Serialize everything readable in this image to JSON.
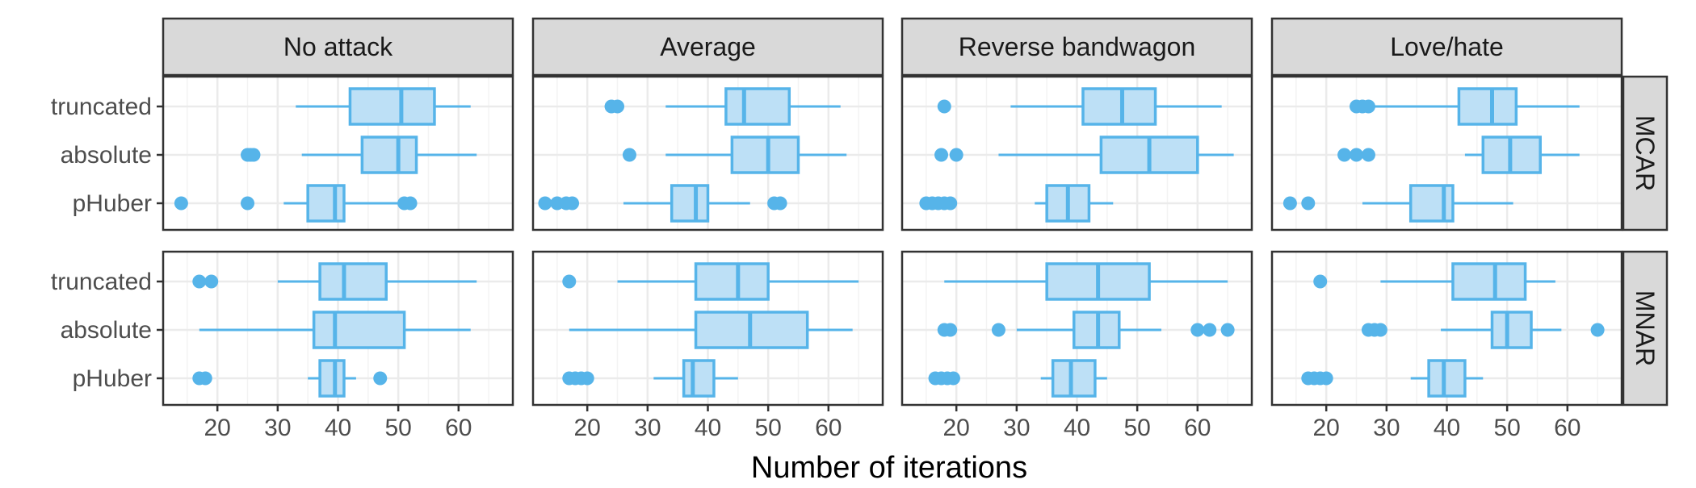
{
  "chart_data": {
    "type": "boxplot",
    "facet_cols": [
      "No attack",
      "Average",
      "Reverse bandwagon",
      "Love/hate"
    ],
    "facet_rows": [
      "MCAR",
      "MNAR"
    ],
    "categories": [
      "truncated",
      "absolute",
      "pHuber"
    ],
    "xlabel": "Number of iterations",
    "xlim": [
      11,
      69
    ],
    "x_ticks": [
      "20",
      "30",
      "40",
      "50",
      "60"
    ],
    "grid": true,
    "colors": {
      "box_fill": "#bde0f6",
      "box_stroke": "#56b4e9",
      "strip_fill": "#d9d9d9",
      "panel_border": "#333333",
      "grid": "#ebebeb"
    },
    "panels": [
      {
        "row": "MCAR",
        "col": "No attack",
        "boxes": [
          {
            "category": "truncated",
            "whisker_low": 33,
            "q1": 42,
            "median": 50.5,
            "q3": 56,
            "whisker_high": 62,
            "outliers": []
          },
          {
            "category": "absolute",
            "whisker_low": 34,
            "q1": 44,
            "median": 50,
            "q3": 53,
            "whisker_high": 63,
            "outliers": [
              25,
              25.5,
              26
            ]
          },
          {
            "category": "pHuber",
            "whisker_low": 31,
            "q1": 35,
            "median": 39.5,
            "q3": 41,
            "whisker_high": 50,
            "outliers": [
              14,
              25,
              51,
              52
            ]
          }
        ]
      },
      {
        "row": "MCAR",
        "col": "Average",
        "boxes": [
          {
            "category": "truncated",
            "whisker_low": 33,
            "q1": 43,
            "median": 46,
            "q3": 53.5,
            "whisker_high": 62,
            "outliers": [
              24,
              25
            ]
          },
          {
            "category": "absolute",
            "whisker_low": 33,
            "q1": 44,
            "median": 50,
            "q3": 55,
            "whisker_high": 63,
            "outliers": [
              27
            ]
          },
          {
            "category": "pHuber",
            "whisker_low": 26,
            "q1": 34,
            "median": 38,
            "q3": 40,
            "whisker_high": 47,
            "outliers": [
              13,
              15,
              16.5,
              17.5,
              51,
              52
            ]
          }
        ]
      },
      {
        "row": "MCAR",
        "col": "Reverse bandwagon",
        "boxes": [
          {
            "category": "truncated",
            "whisker_low": 29,
            "q1": 41,
            "median": 47.5,
            "q3": 53,
            "whisker_high": 64,
            "outliers": [
              18
            ]
          },
          {
            "category": "absolute",
            "whisker_low": 27,
            "q1": 44,
            "median": 52,
            "q3": 60,
            "whisker_high": 66,
            "outliers": [
              17.5,
              20
            ]
          },
          {
            "category": "pHuber",
            "whisker_low": 33,
            "q1": 35,
            "median": 38.5,
            "q3": 42,
            "whisker_high": 46,
            "outliers": [
              15,
              16,
              17,
              18,
              19
            ]
          }
        ]
      },
      {
        "row": "MCAR",
        "col": "Love/hate",
        "boxes": [
          {
            "category": "truncated",
            "whisker_low": 28,
            "q1": 42,
            "median": 47.5,
            "q3": 51.5,
            "whisker_high": 62,
            "outliers": [
              25,
              26,
              27
            ]
          },
          {
            "category": "absolute",
            "whisker_low": 43,
            "q1": 46,
            "median": 50.5,
            "q3": 55.5,
            "whisker_high": 62,
            "outliers": [
              23,
              25,
              27
            ]
          },
          {
            "category": "pHuber",
            "whisker_low": 26,
            "q1": 34,
            "median": 39.5,
            "q3": 41,
            "whisker_high": 51,
            "outliers": [
              14,
              17
            ]
          }
        ]
      },
      {
        "row": "MNAR",
        "col": "No attack",
        "boxes": [
          {
            "category": "truncated",
            "whisker_low": 30,
            "q1": 37,
            "median": 41,
            "q3": 48,
            "whisker_high": 63,
            "outliers": [
              17,
              19
            ]
          },
          {
            "category": "absolute",
            "whisker_low": 17,
            "q1": 36,
            "median": 39.5,
            "q3": 51,
            "whisker_high": 62,
            "outliers": []
          },
          {
            "category": "pHuber",
            "whisker_low": 35,
            "q1": 37,
            "median": 39.5,
            "q3": 41,
            "whisker_high": 43,
            "outliers": [
              17,
              18,
              47
            ]
          }
        ]
      },
      {
        "row": "MNAR",
        "col": "Average",
        "boxes": [
          {
            "category": "truncated",
            "whisker_low": 25,
            "q1": 38,
            "median": 45,
            "q3": 50,
            "whisker_high": 65,
            "outliers": [
              17
            ]
          },
          {
            "category": "absolute",
            "whisker_low": 17,
            "q1": 38,
            "median": 47,
            "q3": 56.5,
            "whisker_high": 64,
            "outliers": []
          },
          {
            "category": "pHuber",
            "whisker_low": 31,
            "q1": 36,
            "median": 37.5,
            "q3": 41,
            "whisker_high": 45,
            "outliers": [
              17,
              18,
              19,
              20
            ]
          }
        ]
      },
      {
        "row": "MNAR",
        "col": "Reverse bandwagon",
        "boxes": [
          {
            "category": "truncated",
            "whisker_low": 18,
            "q1": 35,
            "median": 43.5,
            "q3": 52,
            "whisker_high": 65,
            "outliers": []
          },
          {
            "category": "absolute",
            "whisker_low": 30,
            "q1": 39.5,
            "median": 43.5,
            "q3": 47,
            "whisker_high": 54,
            "outliers": [
              18,
              19,
              27,
              60,
              62,
              65
            ]
          },
          {
            "category": "pHuber",
            "whisker_low": 34,
            "q1": 36,
            "median": 39,
            "q3": 43,
            "whisker_high": 45,
            "outliers": [
              16.5,
              17.5,
              18.5,
              19.5
            ]
          }
        ]
      },
      {
        "row": "MNAR",
        "col": "Love/hate",
        "boxes": [
          {
            "category": "truncated",
            "whisker_low": 29,
            "q1": 41,
            "median": 48,
            "q3": 53,
            "whisker_high": 58,
            "outliers": [
              19
            ]
          },
          {
            "category": "absolute",
            "whisker_low": 39,
            "q1": 47.5,
            "median": 50,
            "q3": 54,
            "whisker_high": 59,
            "outliers": [
              27,
              28,
              29,
              65
            ]
          },
          {
            "category": "pHuber",
            "whisker_low": 34,
            "q1": 37,
            "median": 39.5,
            "q3": 43,
            "whisker_high": 46,
            "outliers": [
              17,
              18,
              19,
              20
            ]
          }
        ]
      }
    ]
  }
}
